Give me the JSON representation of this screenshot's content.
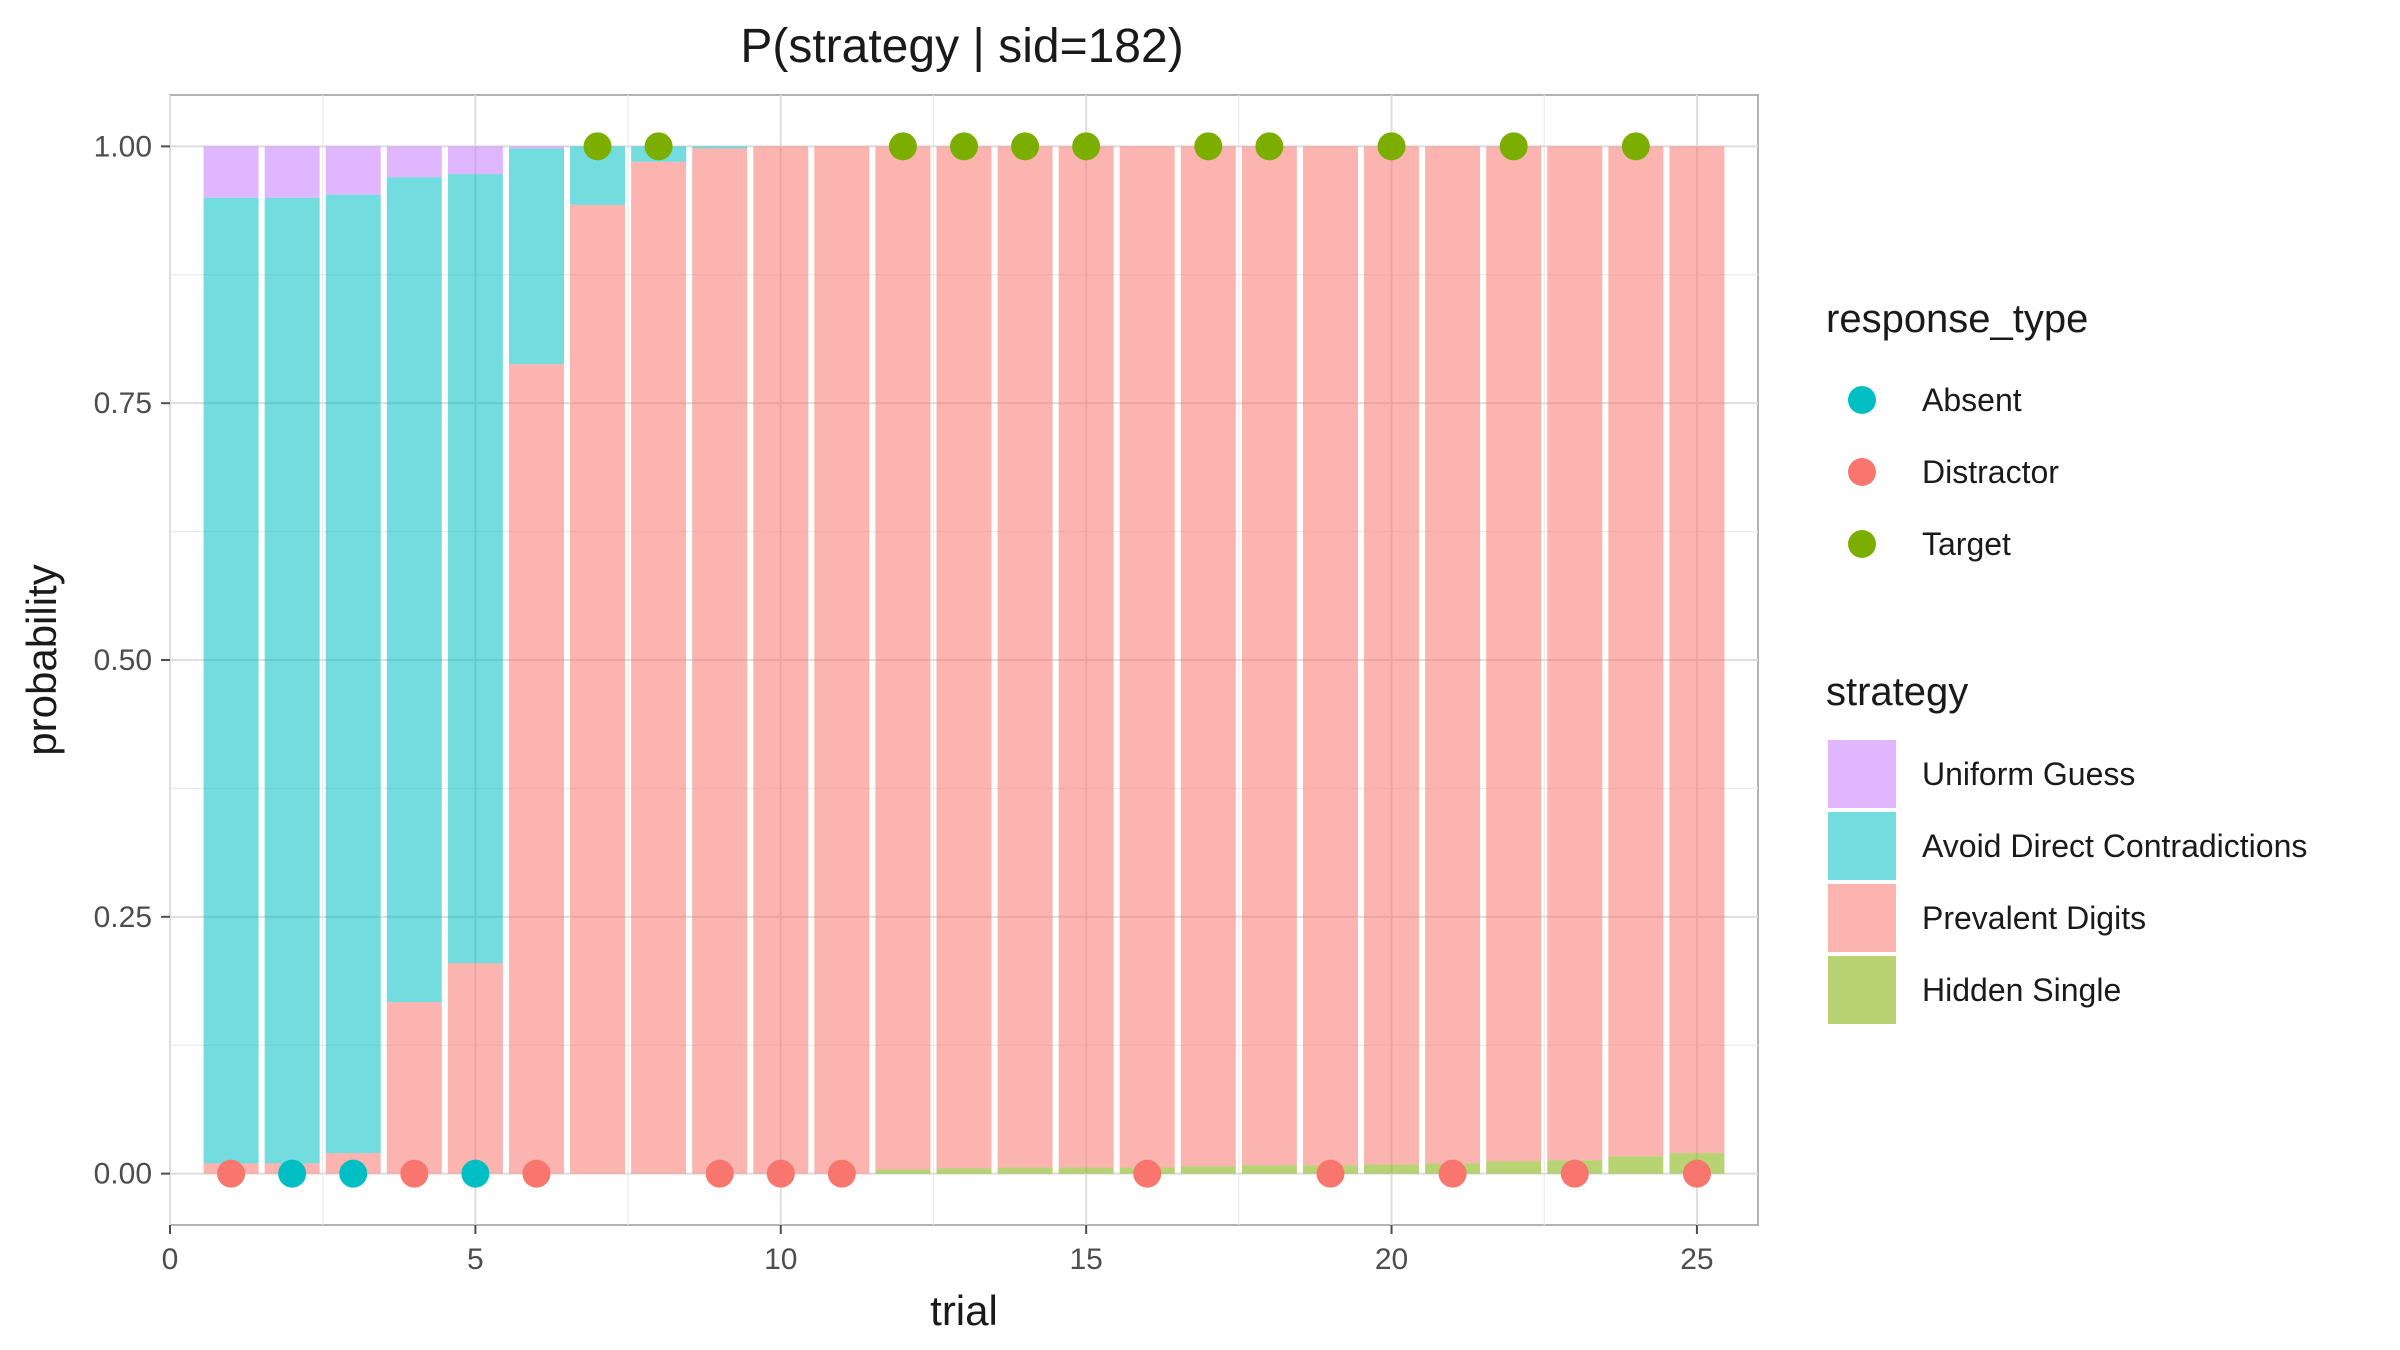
{
  "chart_data": {
    "type": "bar",
    "stacked": true,
    "title": "P(strategy | sid=182)",
    "xlabel": "trial",
    "ylabel": "probability",
    "xlim": [
      0,
      26
    ],
    "ylim": [
      -0.05,
      1.05
    ],
    "x_ticks": [
      0,
      5,
      10,
      15,
      20,
      25
    ],
    "x_tick_labels": [
      "0",
      "5",
      "10",
      "15",
      "20",
      "25"
    ],
    "y_ticks": [
      0,
      0.25,
      0.5,
      0.75,
      1
    ],
    "y_tick_labels": [
      "0.00",
      "0.25",
      "0.50",
      "0.75",
      "1.00"
    ],
    "grid": true,
    "legend_position": "right",
    "x": [
      1,
      2,
      3,
      4,
      5,
      6,
      7,
      8,
      9,
      10,
      11,
      12,
      13,
      14,
      15,
      16,
      17,
      18,
      19,
      20,
      21,
      22,
      23,
      24,
      25
    ],
    "series": [
      {
        "name": "Hidden Single",
        "color": "#7CAE00",
        "values": [
          0,
          0,
          0,
          0,
          0,
          0,
          0,
          0,
          0,
          0,
          0,
          0.004,
          0.005,
          0.006,
          0.006,
          0.006,
          0.007,
          0.008,
          0.008,
          0.009,
          0.01,
          0.012,
          0.013,
          0.017,
          0.02
        ]
      },
      {
        "name": "Prevalent Digits",
        "color": "#F8766D",
        "values": [
          0.01,
          0.01,
          0.02,
          0.167,
          0.205,
          0.788,
          0.943,
          0.985,
          0.998,
          1.0,
          1.0,
          0.996,
          0.995,
          0.994,
          0.994,
          0.994,
          0.993,
          0.992,
          0.992,
          0.991,
          0.99,
          0.988,
          0.987,
          0.983,
          0.98
        ]
      },
      {
        "name": "Avoid Direct Contradictions",
        "color": "#00BFC4",
        "values": [
          0.94,
          0.94,
          0.933,
          0.803,
          0.768,
          0.21,
          0.057,
          0.015,
          0.002,
          0,
          0,
          0,
          0,
          0,
          0,
          0,
          0,
          0,
          0,
          0,
          0,
          0,
          0,
          0,
          0
        ]
      },
      {
        "name": "Uniform Guess",
        "color": "#C77CFF",
        "values": [
          0.05,
          0.05,
          0.047,
          0.03,
          0.027,
          0.002,
          0,
          0,
          0,
          0,
          0,
          0,
          0,
          0,
          0,
          0,
          0,
          0,
          0,
          0,
          0,
          0,
          0,
          0,
          0
        ]
      }
    ],
    "responses": [
      {
        "x": 1,
        "y": 0,
        "type": "Distractor"
      },
      {
        "x": 2,
        "y": 0,
        "type": "Absent"
      },
      {
        "x": 3,
        "y": 0,
        "type": "Absent"
      },
      {
        "x": 4,
        "y": 0,
        "type": "Distractor"
      },
      {
        "x": 5,
        "y": 0,
        "type": "Absent"
      },
      {
        "x": 6,
        "y": 0,
        "type": "Distractor"
      },
      {
        "x": 7,
        "y": 1,
        "type": "Target"
      },
      {
        "x": 8,
        "y": 1,
        "type": "Target"
      },
      {
        "x": 9,
        "y": 0,
        "type": "Distractor"
      },
      {
        "x": 10,
        "y": 0,
        "type": "Distractor"
      },
      {
        "x": 11,
        "y": 0,
        "type": "Distractor"
      },
      {
        "x": 12,
        "y": 1,
        "type": "Target"
      },
      {
        "x": 13,
        "y": 1,
        "type": "Target"
      },
      {
        "x": 14,
        "y": 1,
        "type": "Target"
      },
      {
        "x": 15,
        "y": 1,
        "type": "Target"
      },
      {
        "x": 16,
        "y": 0,
        "type": "Distractor"
      },
      {
        "x": 17,
        "y": 1,
        "type": "Target"
      },
      {
        "x": 18,
        "y": 1,
        "type": "Target"
      },
      {
        "x": 19,
        "y": 0,
        "type": "Distractor"
      },
      {
        "x": 20,
        "y": 1,
        "type": "Target"
      },
      {
        "x": 21,
        "y": 0,
        "type": "Distractor"
      },
      {
        "x": 22,
        "y": 1,
        "type": "Target"
      },
      {
        "x": 23,
        "y": 0,
        "type": "Distractor"
      },
      {
        "x": 24,
        "y": 1,
        "type": "Target"
      },
      {
        "x": 25,
        "y": 0,
        "type": "Distractor"
      }
    ],
    "legends": [
      {
        "title": "response_type",
        "kind": "point",
        "entries": [
          {
            "label": "Absent",
            "color": "#00BFC4"
          },
          {
            "label": "Distractor",
            "color": "#F8766D"
          },
          {
            "label": "Target",
            "color": "#7CAE00"
          }
        ]
      },
      {
        "title": "strategy",
        "kind": "fill",
        "entries": [
          {
            "label": "Uniform Guess",
            "color": "#C77CFF"
          },
          {
            "label": "Avoid Direct Contradictions",
            "color": "#00BFC4"
          },
          {
            "label": "Prevalent Digits",
            "color": "#F8766D"
          },
          {
            "label": "Hidden Single",
            "color": "#7CAE00"
          }
        ]
      }
    ]
  }
}
